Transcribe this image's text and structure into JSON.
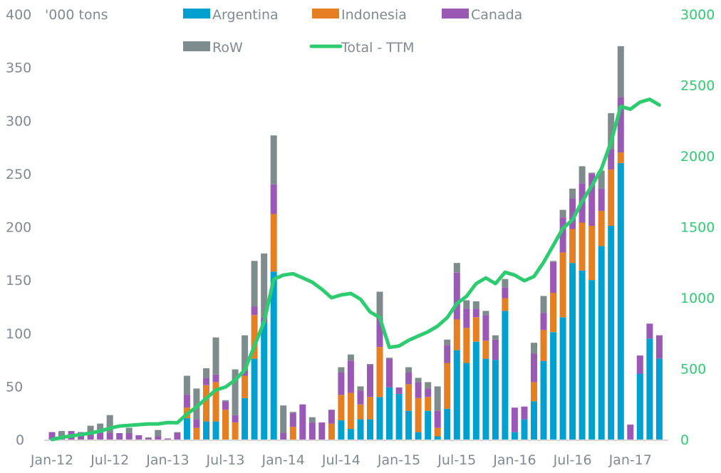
{
  "chart_data": {
    "type": "bar",
    "stacked": true,
    "title": "",
    "ylabel": "'000 tons",
    "y2label": "",
    "ylim": [
      0,
      400
    ],
    "y2lim": [
      0,
      3000
    ],
    "yticks": [
      "0",
      "50",
      "100",
      "150",
      "200",
      "250",
      "300",
      "350",
      "400"
    ],
    "y2ticks": [
      "0",
      "500",
      "1000",
      "1500",
      "2000",
      "2500",
      "3000"
    ],
    "xtick_labels": [
      "Jan-12",
      "Jul-12",
      "Jan-13",
      "Jul-13",
      "Jan-14",
      "Jul-14",
      "Jan-15",
      "Jul-15",
      "Jan-16",
      "Jul-16",
      "Jan-17"
    ],
    "legend_position": "top",
    "grid": false,
    "categories": [
      "Jan-12",
      "Feb-12",
      "Mar-12",
      "Apr-12",
      "May-12",
      "Jun-12",
      "Jul-12",
      "Aug-12",
      "Sep-12",
      "Oct-12",
      "Nov-12",
      "Dec-12",
      "Jan-13",
      "Feb-13",
      "Mar-13",
      "Apr-13",
      "May-13",
      "Jun-13",
      "Jul-13",
      "Aug-13",
      "Sep-13",
      "Oct-13",
      "Nov-13",
      "Dec-13",
      "Jan-14",
      "Feb-14",
      "Mar-14",
      "Apr-14",
      "May-14",
      "Jun-14",
      "Jul-14",
      "Aug-14",
      "Sep-14",
      "Oct-14",
      "Nov-14",
      "Dec-14",
      "Jan-15",
      "Feb-15",
      "Mar-15",
      "Apr-15",
      "May-15",
      "Jun-15",
      "Jul-15",
      "Aug-15",
      "Sep-15",
      "Oct-15",
      "Nov-15",
      "Dec-15",
      "Jan-16",
      "Feb-16",
      "Mar-16",
      "Apr-16",
      "May-16",
      "Jun-16",
      "Jul-16",
      "Aug-16",
      "Sep-16",
      "Oct-16",
      "Nov-16",
      "Dec-16",
      "Jan-17",
      "Feb-17",
      "Mar-17",
      "Apr-17"
    ],
    "series": [
      {
        "name": "Argentina",
        "color": "#00a0d0",
        "axis": "left",
        "kind": "bar",
        "values": [
          0,
          0,
          0,
          0,
          0,
          0,
          0,
          0,
          0,
          0,
          0,
          0,
          0,
          0,
          20,
          0,
          17,
          17,
          0,
          0,
          39,
          76,
          110,
          158,
          0,
          0,
          0,
          0,
          0,
          0,
          18,
          10,
          19,
          19,
          40,
          49,
          43,
          27,
          7,
          27,
          3,
          29,
          84,
          72,
          92,
          76,
          75,
          121,
          7,
          19,
          36,
          74,
          101,
          115,
          166,
          159,
          150,
          182,
          201,
          260,
          0,
          62,
          95,
          76
        ]
      },
      {
        "name": "Indonesia",
        "color": "#e67e22",
        "axis": "left",
        "kind": "bar",
        "values": [
          0,
          0,
          0,
          0,
          0,
          0,
          0,
          0,
          0,
          0,
          0,
          0,
          0,
          0,
          10,
          11,
          34,
          37,
          28,
          16,
          21,
          41,
          0,
          54,
          0,
          12,
          0,
          0,
          0,
          15,
          24,
          34,
          14,
          21,
          47,
          0,
          0,
          25,
          32,
          13,
          8,
          43,
          29,
          33,
          23,
          17,
          0,
          12,
          0,
          0,
          18,
          29,
          37,
          61,
          32,
          45,
          51,
          33,
          53,
          10,
          0,
          0,
          0,
          0
        ]
      },
      {
        "name": "Canada",
        "color": "#9b59b6",
        "axis": "left",
        "kind": "bar",
        "values": [
          7,
          3,
          8,
          7,
          5,
          6,
          6,
          6,
          6,
          4,
          1,
          3,
          1,
          6,
          12,
          8,
          7,
          7,
          8,
          7,
          5,
          8,
          5,
          28,
          6,
          13,
          33,
          16,
          16,
          13,
          21,
          30,
          13,
          30,
          28,
          27,
          6,
          11,
          15,
          8,
          16,
          17,
          44,
          18,
          8,
          24,
          19,
          10,
          23,
          12,
          27,
          16,
          29,
          33,
          29,
          37,
          49,
          21,
          19,
          52,
          14,
          17,
          14,
          22
        ]
      },
      {
        "name": "RoW",
        "color": "#7f8c8d",
        "axis": "left",
        "kind": "bar",
        "values": [
          0,
          5,
          0,
          0,
          8,
          9,
          17,
          0,
          5,
          0,
          1,
          6,
          0,
          1,
          18,
          29,
          9,
          35,
          1,
          43,
          33,
          43,
          60,
          46,
          26,
          1,
          0,
          5,
          0,
          0,
          5,
          6,
          4,
          1,
          24,
          1,
          0,
          5,
          4,
          6,
          23,
          5,
          9,
          8,
          7,
          4,
          4,
          8,
          0,
          0,
          10,
          16,
          1,
          7,
          9,
          16,
          1,
          17,
          34,
          48,
          0,
          0,
          0,
          0
        ]
      },
      {
        "name": "Total - TTM",
        "color": "#2ecc71",
        "axis": "right",
        "kind": "line",
        "values": [
          0,
          15,
          25,
          35,
          45,
          60,
          80,
          95,
          100,
          105,
          110,
          110,
          120,
          118,
          180,
          230,
          290,
          350,
          370,
          420,
          490,
          660,
          830,
          1130,
          1160,
          1170,
          1140,
          1110,
          1060,
          1000,
          1020,
          1030,
          990,
          900,
          860,
          650,
          660,
          700,
          730,
          760,
          800,
          860,
          960,
          1010,
          1100,
          1140,
          1100,
          1180,
          1160,
          1120,
          1150,
          1250,
          1370,
          1490,
          1550,
          1680,
          1790,
          1910,
          2100,
          2350,
          2330,
          2380,
          2400,
          2360
        ]
      }
    ]
  },
  "legend": {
    "argentina": "Argentina",
    "indonesia": "Indonesia",
    "canada": "Canada",
    "row": "RoW",
    "total": "Total - TTM"
  },
  "units_label": "'000 tons"
}
